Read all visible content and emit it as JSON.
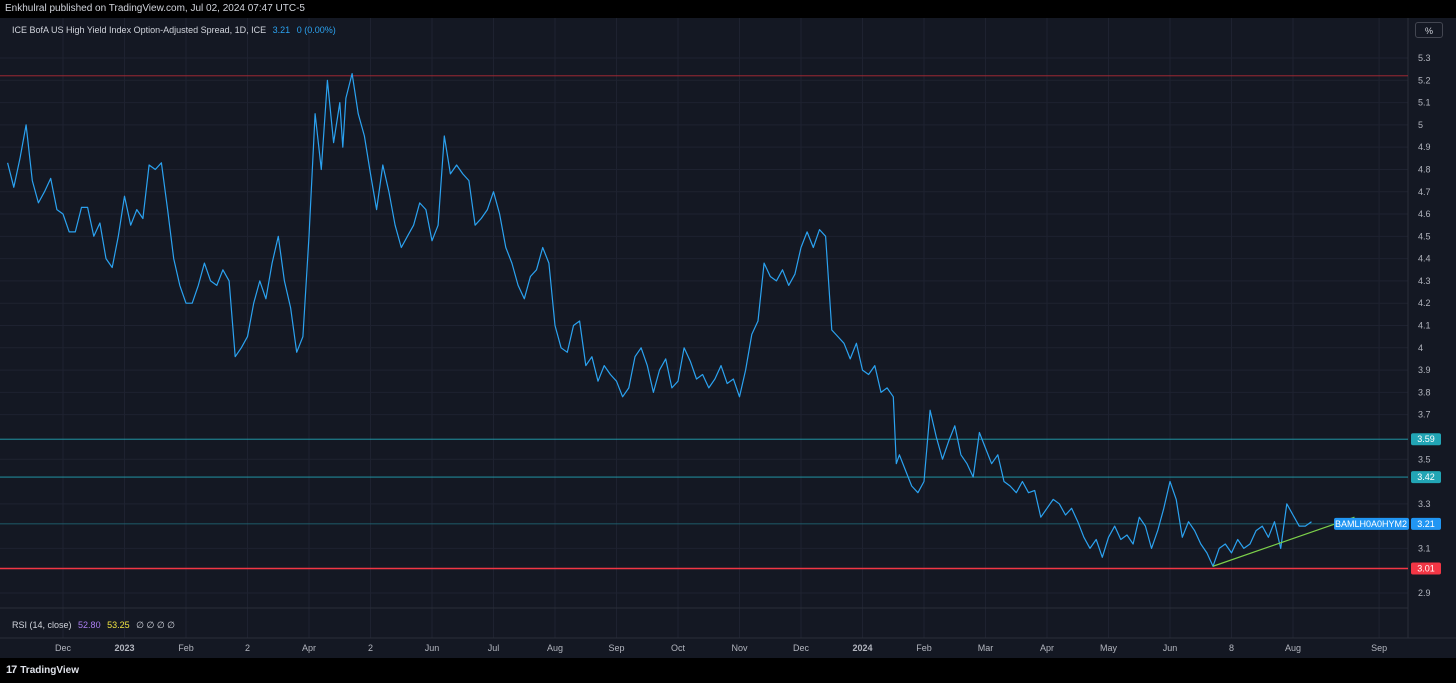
{
  "header": {
    "publish_text": "Enkhulral published on TradingView.com, Jul 02, 2024 07:47 UTC-5"
  },
  "legend": {
    "title": "ICE BofA US High Yield Index Option-Adjusted Spread, 1D, ICE",
    "value": "3.21",
    "change": "0 (0.00%)"
  },
  "rsi": {
    "label": "RSI (14, close)",
    "value1": "52.80",
    "value2": "53.25",
    "dots": "∅ ∅ ∅ ∅"
  },
  "unit_button": "%",
  "footer": {
    "brand": "TradingView",
    "logo_glyph": "17"
  },
  "colors": {
    "series": "#2ba2f0",
    "red_line": "#f23645",
    "teal_line": "#22a5b5",
    "trend_line": "#7cd04a",
    "background": "#131722"
  },
  "chart_data": {
    "type": "line",
    "ylim": [
      2.79,
      5.36
    ],
    "y_ticks": [
      "5.3",
      "5.2",
      "5.1",
      "5",
      "4.9",
      "4.8",
      "4.7",
      "4.6",
      "4.5",
      "4.4",
      "4.3",
      "4.2",
      "4.1",
      "4",
      "3.9",
      "3.8",
      "3.7",
      "3.5",
      "3.3",
      "3.1",
      "2.9"
    ],
    "x_ticks": [
      {
        "label": "Dec",
        "m": 0.5
      },
      {
        "label": "2023",
        "m": 1.5,
        "bold": true
      },
      {
        "label": "Feb",
        "m": 2.5
      },
      {
        "label": "2",
        "m": 3.5
      },
      {
        "label": "Apr",
        "m": 4.5
      },
      {
        "label": "2",
        "m": 5.5
      },
      {
        "label": "Jun",
        "m": 6.5
      },
      {
        "label": "Jul",
        "m": 7.5
      },
      {
        "label": "Aug",
        "m": 8.5
      },
      {
        "label": "Sep",
        "m": 9.5
      },
      {
        "label": "Oct",
        "m": 10.5
      },
      {
        "label": "Nov",
        "m": 11.5
      },
      {
        "label": "Dec",
        "m": 12.5
      },
      {
        "label": "2024",
        "m": 13.5,
        "bold": true
      },
      {
        "label": "Feb",
        "m": 14.5
      },
      {
        "label": "Mar",
        "m": 15.5
      },
      {
        "label": "Apr",
        "m": 16.5
      },
      {
        "label": "May",
        "m": 17.5
      },
      {
        "label": "Jun",
        "m": 18.5
      },
      {
        "label": "8",
        "m": 19.5
      },
      {
        "label": "Aug",
        "m": 20.5
      },
      {
        "label": "Sep",
        "m": 21.9
      }
    ],
    "series": [
      {
        "values": [
          [
            -0.4,
            4.83
          ],
          [
            -0.3,
            4.72
          ],
          [
            -0.2,
            4.85
          ],
          [
            -0.1,
            5.0
          ],
          [
            0.0,
            4.75
          ],
          [
            0.1,
            4.65
          ],
          [
            0.2,
            4.7
          ],
          [
            0.3,
            4.76
          ],
          [
            0.4,
            4.62
          ],
          [
            0.5,
            4.6
          ],
          [
            0.6,
            4.52
          ],
          [
            0.7,
            4.52
          ],
          [
            0.8,
            4.63
          ],
          [
            0.9,
            4.63
          ],
          [
            1.0,
            4.5
          ],
          [
            1.1,
            4.56
          ],
          [
            1.2,
            4.4
          ],
          [
            1.3,
            4.36
          ],
          [
            1.4,
            4.5
          ],
          [
            1.5,
            4.68
          ],
          [
            1.6,
            4.55
          ],
          [
            1.7,
            4.62
          ],
          [
            1.8,
            4.58
          ],
          [
            1.9,
            4.82
          ],
          [
            2.0,
            4.8
          ],
          [
            2.1,
            4.83
          ],
          [
            2.2,
            4.62
          ],
          [
            2.3,
            4.4
          ],
          [
            2.4,
            4.28
          ],
          [
            2.5,
            4.2
          ],
          [
            2.6,
            4.2
          ],
          [
            2.7,
            4.28
          ],
          [
            2.8,
            4.38
          ],
          [
            2.9,
            4.3
          ],
          [
            3.0,
            4.28
          ],
          [
            3.1,
            4.35
          ],
          [
            3.2,
            4.3
          ],
          [
            3.3,
            3.96
          ],
          [
            3.4,
            4.0
          ],
          [
            3.5,
            4.05
          ],
          [
            3.6,
            4.2
          ],
          [
            3.7,
            4.3
          ],
          [
            3.8,
            4.22
          ],
          [
            3.9,
            4.38
          ],
          [
            4.0,
            4.5
          ],
          [
            4.1,
            4.3
          ],
          [
            4.2,
            4.18
          ],
          [
            4.3,
            3.98
          ],
          [
            4.4,
            4.05
          ],
          [
            4.5,
            4.5
          ],
          [
            4.6,
            5.05
          ],
          [
            4.7,
            4.8
          ],
          [
            4.8,
            5.2
          ],
          [
            4.9,
            4.92
          ],
          [
            5.0,
            5.1
          ],
          [
            5.05,
            4.9
          ],
          [
            5.1,
            5.12
          ],
          [
            5.2,
            5.23
          ],
          [
            5.3,
            5.05
          ],
          [
            5.4,
            4.95
          ],
          [
            5.5,
            4.78
          ],
          [
            5.6,
            4.62
          ],
          [
            5.7,
            4.82
          ],
          [
            5.8,
            4.7
          ],
          [
            5.9,
            4.55
          ],
          [
            6.0,
            4.45
          ],
          [
            6.1,
            4.5
          ],
          [
            6.2,
            4.55
          ],
          [
            6.3,
            4.65
          ],
          [
            6.4,
            4.62
          ],
          [
            6.5,
            4.48
          ],
          [
            6.6,
            4.55
          ],
          [
            6.7,
            4.95
          ],
          [
            6.8,
            4.78
          ],
          [
            6.9,
            4.82
          ],
          [
            7.0,
            4.78
          ],
          [
            7.1,
            4.75
          ],
          [
            7.2,
            4.55
          ],
          [
            7.3,
            4.58
          ],
          [
            7.4,
            4.62
          ],
          [
            7.5,
            4.7
          ],
          [
            7.6,
            4.6
          ],
          [
            7.7,
            4.45
          ],
          [
            7.8,
            4.38
          ],
          [
            7.9,
            4.28
          ],
          [
            8.0,
            4.22
          ],
          [
            8.1,
            4.32
          ],
          [
            8.2,
            4.35
          ],
          [
            8.3,
            4.45
          ],
          [
            8.4,
            4.38
          ],
          [
            8.5,
            4.1
          ],
          [
            8.6,
            4.0
          ],
          [
            8.7,
            3.98
          ],
          [
            8.8,
            4.1
          ],
          [
            8.9,
            4.12
          ],
          [
            9.0,
            3.92
          ],
          [
            9.1,
            3.96
          ],
          [
            9.2,
            3.85
          ],
          [
            9.3,
            3.92
          ],
          [
            9.4,
            3.88
          ],
          [
            9.5,
            3.85
          ],
          [
            9.6,
            3.78
          ],
          [
            9.7,
            3.82
          ],
          [
            9.8,
            3.96
          ],
          [
            9.9,
            4.0
          ],
          [
            10.0,
            3.92
          ],
          [
            10.1,
            3.8
          ],
          [
            10.2,
            3.9
          ],
          [
            10.3,
            3.95
          ],
          [
            10.4,
            3.82
          ],
          [
            10.5,
            3.85
          ],
          [
            10.6,
            4.0
          ],
          [
            10.7,
            3.94
          ],
          [
            10.8,
            3.86
          ],
          [
            10.9,
            3.88
          ],
          [
            11.0,
            3.82
          ],
          [
            11.1,
            3.86
          ],
          [
            11.2,
            3.92
          ],
          [
            11.3,
            3.84
          ],
          [
            11.4,
            3.86
          ],
          [
            11.5,
            3.78
          ],
          [
            11.6,
            3.9
          ],
          [
            11.7,
            4.06
          ],
          [
            11.8,
            4.12
          ],
          [
            11.9,
            4.38
          ],
          [
            12.0,
            4.32
          ],
          [
            12.1,
            4.3
          ],
          [
            12.2,
            4.35
          ],
          [
            12.3,
            4.28
          ],
          [
            12.4,
            4.33
          ],
          [
            12.5,
            4.45
          ],
          [
            12.6,
            4.52
          ],
          [
            12.7,
            4.45
          ],
          [
            12.8,
            4.53
          ],
          [
            12.9,
            4.5
          ],
          [
            13.0,
            4.08
          ],
          [
            13.1,
            4.05
          ],
          [
            13.2,
            4.02
          ],
          [
            13.3,
            3.95
          ],
          [
            13.4,
            4.02
          ],
          [
            13.5,
            3.9
          ],
          [
            13.6,
            3.88
          ],
          [
            13.7,
            3.92
          ],
          [
            13.8,
            3.8
          ],
          [
            13.9,
            3.82
          ],
          [
            14.0,
            3.78
          ],
          [
            14.05,
            3.48
          ],
          [
            14.1,
            3.52
          ],
          [
            14.2,
            3.45
          ],
          [
            14.3,
            3.38
          ],
          [
            14.4,
            3.35
          ],
          [
            14.5,
            3.4
          ],
          [
            14.6,
            3.72
          ],
          [
            14.7,
            3.6
          ],
          [
            14.8,
            3.5
          ],
          [
            14.9,
            3.58
          ],
          [
            15.0,
            3.65
          ],
          [
            15.1,
            3.52
          ],
          [
            15.2,
            3.48
          ],
          [
            15.3,
            3.42
          ],
          [
            15.4,
            3.62
          ],
          [
            15.5,
            3.55
          ],
          [
            15.6,
            3.48
          ],
          [
            15.7,
            3.52
          ],
          [
            15.8,
            3.4
          ],
          [
            15.9,
            3.38
          ],
          [
            16.0,
            3.35
          ],
          [
            16.1,
            3.4
          ],
          [
            16.2,
            3.35
          ],
          [
            16.3,
            3.36
          ],
          [
            16.4,
            3.24
          ],
          [
            16.5,
            3.28
          ],
          [
            16.6,
            3.32
          ],
          [
            16.7,
            3.3
          ],
          [
            16.8,
            3.25
          ],
          [
            16.9,
            3.28
          ],
          [
            17.0,
            3.22
          ],
          [
            17.1,
            3.15
          ],
          [
            17.2,
            3.1
          ],
          [
            17.3,
            3.14
          ],
          [
            17.4,
            3.06
          ],
          [
            17.5,
            3.15
          ],
          [
            17.6,
            3.2
          ],
          [
            17.7,
            3.14
          ],
          [
            17.8,
            3.16
          ],
          [
            17.9,
            3.12
          ],
          [
            18.0,
            3.24
          ],
          [
            18.1,
            3.2
          ],
          [
            18.2,
            3.1
          ],
          [
            18.3,
            3.18
          ],
          [
            18.4,
            3.28
          ],
          [
            18.5,
            3.4
          ],
          [
            18.6,
            3.32
          ],
          [
            18.7,
            3.15
          ],
          [
            18.8,
            3.22
          ],
          [
            18.9,
            3.18
          ],
          [
            19.0,
            3.12
          ],
          [
            19.1,
            3.08
          ],
          [
            19.2,
            3.02
          ],
          [
            19.3,
            3.1
          ],
          [
            19.4,
            3.12
          ],
          [
            19.5,
            3.08
          ],
          [
            19.6,
            3.14
          ],
          [
            19.7,
            3.1
          ],
          [
            19.8,
            3.12
          ],
          [
            19.9,
            3.18
          ],
          [
            20.0,
            3.2
          ],
          [
            20.1,
            3.15
          ],
          [
            20.2,
            3.22
          ],
          [
            20.3,
            3.1
          ],
          [
            20.4,
            3.3
          ],
          [
            20.5,
            3.25
          ],
          [
            20.6,
            3.2
          ],
          [
            20.7,
            3.2
          ],
          [
            20.8,
            3.22
          ]
        ]
      }
    ],
    "hlines": [
      {
        "y": 5.22,
        "color": "#b02a35",
        "width": 0.8
      },
      {
        "y": 3.59,
        "color": "#22a5b5",
        "width": 0.8,
        "label": "3.59"
      },
      {
        "y": 3.42,
        "color": "#22a5b5",
        "width": 0.8,
        "label": "3.42"
      },
      {
        "y": 3.21,
        "color": "#1f6f7f",
        "width": 0.8
      },
      {
        "y": 3.01,
        "color": "#f23645",
        "width": 1.5,
        "label": "3.01"
      }
    ],
    "trendline": {
      "x1": 19.2,
      "y1": 3.02,
      "x2": 21.5,
      "y2": 3.24
    },
    "series_label": {
      "name": "BAMLH0A0HYM2",
      "value": "3.21",
      "y": 3.21
    }
  }
}
